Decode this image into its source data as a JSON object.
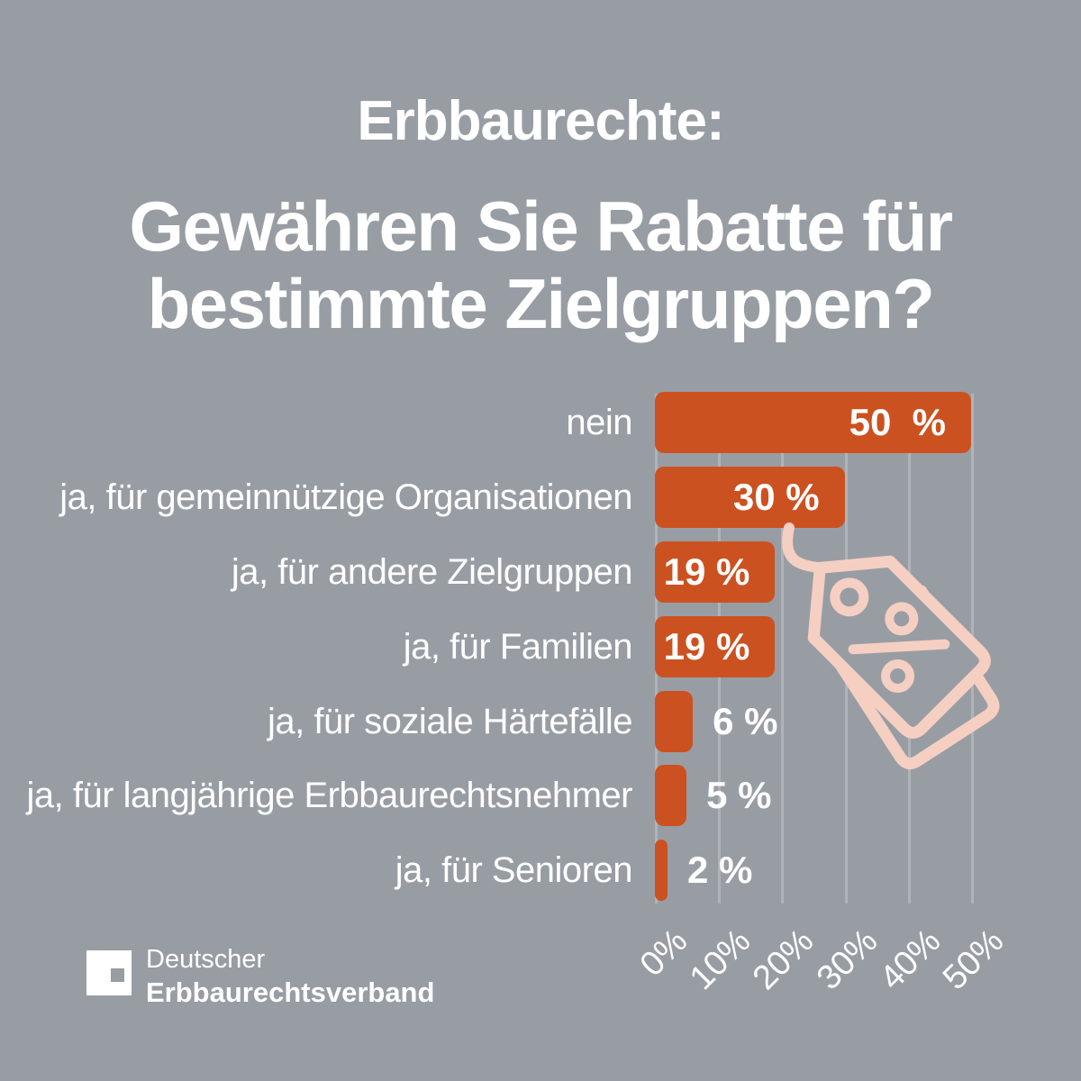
{
  "colors": {
    "background": "#989da4",
    "bar_orange": "#cc5120",
    "tag_pink": "#f5cfc2",
    "text_white": "#ffffff",
    "gridline": "rgba(255,255,255,0.24)"
  },
  "header": {
    "kicker": "Erbbaurechte:",
    "title_line1": "Gewähren Sie Rabatte für",
    "title_line2": "bestimmte Zielgruppen?"
  },
  "chart_data": {
    "type": "bar",
    "orientation": "horizontal",
    "title": "Gewähren Sie Rabatte für bestimmte Zielgruppen?",
    "categories": [
      "nein",
      "ja, für gemeinnützige Organisationen",
      "ja, für andere Zielgruppen",
      "ja, für Familien",
      "ja, für soziale Härtefälle",
      "ja, für langjährige Erbbaurechtsnehmer",
      "ja, für Senioren"
    ],
    "values": [
      50,
      30,
      19,
      19,
      6,
      5,
      2
    ],
    "value_labels": [
      "50  %",
      "30 %",
      "19 %",
      "19 %",
      "6 %",
      "5 %",
      "2 %"
    ],
    "unit": "%",
    "xlim": [
      0,
      50
    ],
    "x_ticks": [
      "0%",
      "10%",
      "20%",
      "30%",
      "40%",
      "50%"
    ],
    "grid": true,
    "legend": "none",
    "bar_color": "#cc5120"
  },
  "icons": {
    "price_tag": "price-tags-percent-icon"
  },
  "footer": {
    "logo_line1": "Deutscher",
    "logo_line2": "Erbbaurechtsverband"
  }
}
